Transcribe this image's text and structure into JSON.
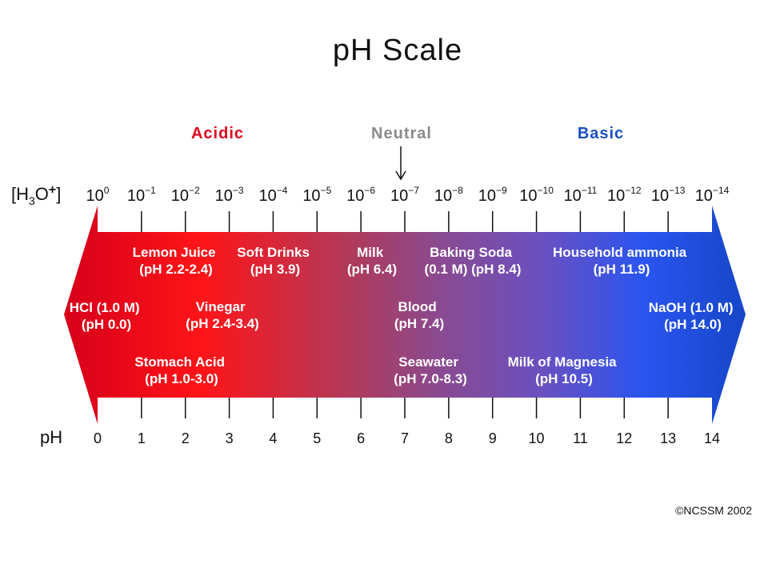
{
  "title": "pH Scale",
  "regions": {
    "acidic": {
      "label": "Acidic",
      "color": "#e0001b"
    },
    "neutral": {
      "label": "Neutral",
      "color": "#8a8a8a"
    },
    "basic": {
      "label": "Basic",
      "color": "#1a4fc0"
    }
  },
  "concentration_axis": {
    "label_base": "[H",
    "label_sub": "3",
    "label_mid": "O",
    "label_sup": "+",
    "label_end": "]",
    "tick_base": "10",
    "exponents": [
      "0",
      "-1",
      "-2",
      "-3",
      "-4",
      "-5",
      "-6",
      "-7",
      "-8",
      "-9",
      "-10",
      "-11",
      "-12",
      "-13",
      "-14"
    ]
  },
  "ph_axis": {
    "label": "pH",
    "ticks": [
      "0",
      "1",
      "2",
      "3",
      "4",
      "5",
      "6",
      "7",
      "8",
      "9",
      "10",
      "11",
      "12",
      "13",
      "14"
    ]
  },
  "gradient_colors": [
    "#e8001a",
    "#ff1a1a",
    "#9a4a7a",
    "#7a4ab0",
    "#2255ee",
    "#1a4fd8"
  ],
  "substances": [
    {
      "name": "HCl (1.0 M)",
      "ph": "(pH 0.0)",
      "ph_value": 0.0
    },
    {
      "name": "Stomach Acid",
      "ph": "(pH 1.0-3.0)",
      "ph_value": 2.0
    },
    {
      "name": "Lemon Juice",
      "ph": "(pH 2.2-2.4)",
      "ph_value": 2.3
    },
    {
      "name": "Vinegar",
      "ph": "(pH 2.4-3.4)",
      "ph_value": 2.9
    },
    {
      "name": "Soft Drinks",
      "ph": "(pH 3.9)",
      "ph_value": 3.9
    },
    {
      "name": "Milk",
      "ph": "(pH 6.4)",
      "ph_value": 6.4
    },
    {
      "name": "Blood",
      "ph": "(pH 7.4)",
      "ph_value": 7.4
    },
    {
      "name": "Seawater",
      "ph": "(pH 7.0-8.3)",
      "ph_value": 7.65
    },
    {
      "name": "Baking Soda",
      "ph": "(0.1 M) (pH 8.4)",
      "ph_value": 8.4
    },
    {
      "name": "Milk of Magnesia",
      "ph": "(pH 10.5)",
      "ph_value": 10.5
    },
    {
      "name": "Household ammonia",
      "ph": "(pH 11.9)",
      "ph_value": 11.9
    },
    {
      "name": "NaOH (1.0 M)",
      "ph": "(pH 14.0)",
      "ph_value": 14.0
    }
  ],
  "copyright": "©NCSSM 2002"
}
